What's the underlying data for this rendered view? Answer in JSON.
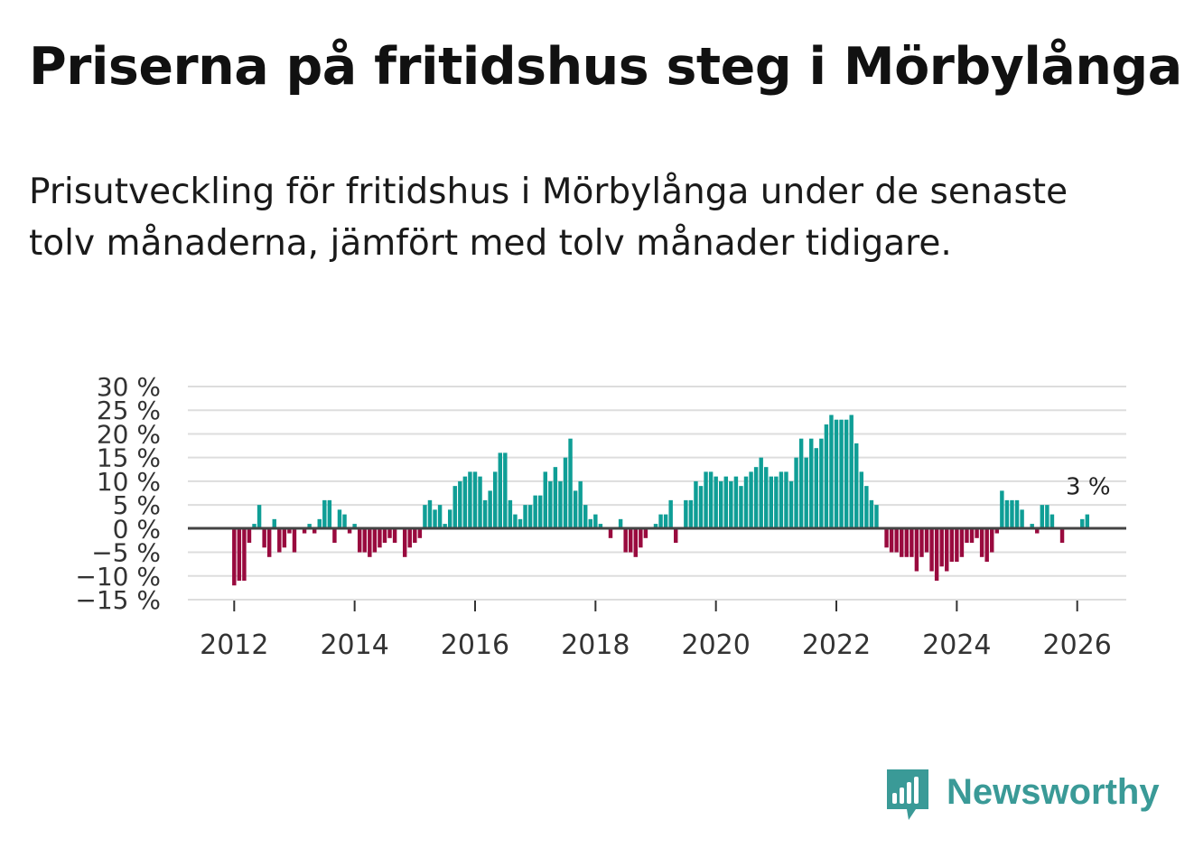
{
  "title": "Priserna på fritidshus steg i Mörbylånga",
  "subtitle": "Prisutveckling för fritidshus i Mörbylånga under de senaste tolv månaderna, jämfört med tolv månader tidigare.",
  "brand": {
    "name": "Newsworthy",
    "color": "#3a9a97"
  },
  "colors": {
    "positive": "#0f9e96",
    "negative": "#990a3e",
    "zero_line": "#444444",
    "grid": "#dddddd"
  },
  "chart_data": {
    "type": "bar",
    "x_start": "2012-01",
    "frequency": "monthly",
    "unit": "%",
    "ylim": [
      -15,
      30
    ],
    "y_ticks": [
      {
        "value": 30,
        "label": "30 %"
      },
      {
        "value": 25,
        "label": "25 %"
      },
      {
        "value": 20,
        "label": "20 %"
      },
      {
        "value": 15,
        "label": "15 %"
      },
      {
        "value": 10,
        "label": "10 %"
      },
      {
        "value": 5,
        "label": "5 %"
      },
      {
        "value": 0,
        "label": "0 %"
      },
      {
        "value": -5,
        "label": "−5 %"
      },
      {
        "value": -10,
        "label": "−10 %"
      },
      {
        "value": -15,
        "label": "−15 %"
      }
    ],
    "x_ticks": [
      {
        "year": 2012,
        "label": "2012"
      },
      {
        "year": 2014,
        "label": "2014"
      },
      {
        "year": 2016,
        "label": "2016"
      },
      {
        "year": 2018,
        "label": "2018"
      },
      {
        "year": 2020,
        "label": "2020"
      },
      {
        "year": 2022,
        "label": "2022"
      },
      {
        "year": 2024,
        "label": "2024"
      },
      {
        "year": 2026,
        "label": "2026"
      }
    ],
    "annotation": "3 %",
    "values": [
      -12,
      -11,
      -11,
      -3,
      1,
      5,
      -4,
      -6,
      2,
      -5,
      -4,
      -1,
      -5,
      0,
      -1,
      1,
      -1,
      2,
      6,
      6,
      -3,
      4,
      3,
      -1,
      1,
      -5,
      -5,
      -6,
      -5,
      -4,
      -3,
      -2,
      -3,
      0,
      -6,
      -4,
      -3,
      -2,
      5,
      6,
      4,
      5,
      1,
      4,
      9,
      10,
      11,
      12,
      12,
      11,
      6,
      8,
      12,
      16,
      16,
      6,
      3,
      2,
      5,
      5,
      7,
      7,
      12,
      10,
      13,
      10,
      15,
      19,
      8,
      10,
      5,
      2,
      3,
      1,
      0,
      -2,
      0,
      2,
      -5,
      -5,
      -6,
      -4,
      -2,
      0,
      1,
      3,
      3,
      6,
      -3,
      0,
      6,
      6,
      10,
      9,
      12,
      12,
      11,
      10,
      11,
      10,
      11,
      9,
      11,
      12,
      13,
      15,
      13,
      11,
      11,
      12,
      12,
      10,
      15,
      19,
      15,
      19,
      17,
      19,
      22,
      24,
      23,
      23,
      23,
      24,
      18,
      12,
      9,
      6,
      5,
      0,
      -4,
      -5,
      -5,
      -6,
      -6,
      -6,
      -9,
      -6,
      -5,
      -9,
      -11,
      -8,
      -9,
      -7,
      -7,
      -6,
      -3,
      -3,
      -2,
      -6,
      -7,
      -5,
      -1,
      8,
      6,
      6,
      6,
      4,
      0,
      1,
      -1,
      5,
      5,
      3,
      0,
      -3,
      0,
      0,
      0,
      2,
      3
    ]
  }
}
